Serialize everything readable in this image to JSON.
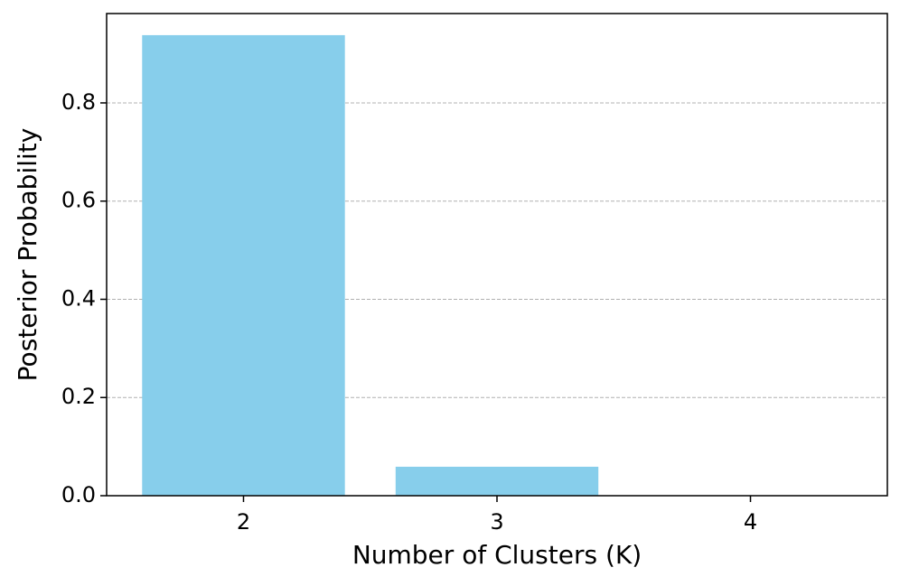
{
  "chart_data": {
    "type": "bar",
    "x": [
      2,
      3,
      4
    ],
    "values": [
      0.938,
      0.059,
      0
    ],
    "color": "#87ceeb",
    "xlabel": "Number of Clusters (K)",
    "ylabel": "Posterior Probability",
    "xlim": [
      1.46,
      4.54
    ],
    "xticks": [
      2,
      3,
      4
    ],
    "ylim": [
      0,
      0.982
    ],
    "yticks": [
      {
        "value": 0,
        "label": "0.0"
      },
      {
        "value": 0.2,
        "label": "0.2"
      },
      {
        "value": 0.4,
        "label": "0.4"
      },
      {
        "value": 0.6,
        "label": "0.6"
      },
      {
        "value": 0.8,
        "label": "0.8"
      }
    ],
    "grid": "y"
  }
}
